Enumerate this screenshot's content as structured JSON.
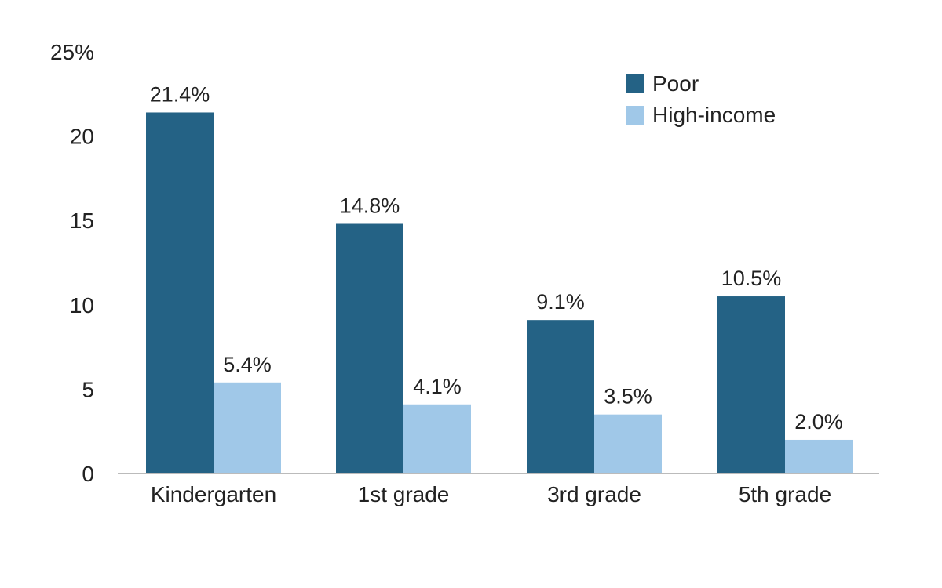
{
  "chart_data": {
    "type": "bar",
    "title": "",
    "xlabel": "",
    "ylabel": "",
    "ylim": [
      0,
      25
    ],
    "yticks": [
      "0",
      "5",
      "10",
      "15",
      "20",
      "25%"
    ],
    "ytick_values": [
      0,
      5,
      10,
      15,
      20,
      25
    ],
    "categories": [
      "Kindergarten",
      "1st grade",
      "3rd grade",
      "5th grade"
    ],
    "series": [
      {
        "name": "Poor",
        "color": "#246285",
        "values": [
          21.4,
          14.8,
          9.1,
          10.5
        ],
        "labels": [
          "21.4%",
          "14.8%",
          "9.1%",
          "10.5%"
        ]
      },
      {
        "name": "High-income",
        "color": "#a0c8e8",
        "values": [
          5.4,
          4.1,
          3.5,
          2.0
        ],
        "labels": [
          "5.4%",
          "4.1%",
          "3.5%",
          "2.0%"
        ]
      }
    ],
    "legend": {
      "placement": "top-right"
    },
    "grid": false
  }
}
